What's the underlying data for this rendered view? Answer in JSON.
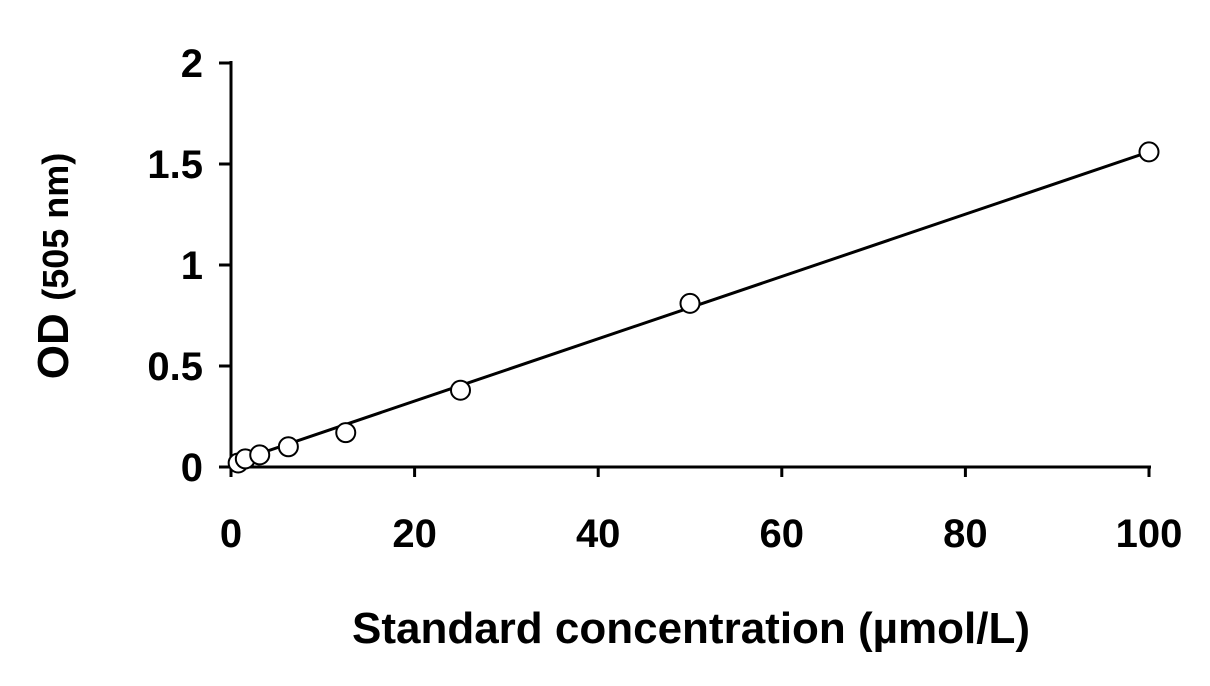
{
  "chart_data": {
    "type": "scatter",
    "title": "",
    "xlabel": "Standard concentration (µmol/L)",
    "ylabel": {
      "main": "OD",
      "unit": "(505 nm)"
    },
    "xlim": [
      0,
      100
    ],
    "ylim": [
      0,
      2
    ],
    "x_ticks": [
      0,
      20,
      40,
      60,
      80,
      100
    ],
    "x_tick_labels": [
      "0",
      "20",
      "40",
      "60",
      "80",
      "100"
    ],
    "y_ticks": [
      0,
      0.5,
      1,
      1.5,
      2
    ],
    "y_tick_labels": [
      "0",
      "0.5",
      "1",
      "1.5",
      "2"
    ],
    "grid": false,
    "legend": "none",
    "series": [
      {
        "marker": "open-circle",
        "x": [
          0.78,
          1.56,
          3.13,
          6.25,
          12.5,
          25,
          50,
          100
        ],
        "y": [
          0.02,
          0.04,
          0.06,
          0.1,
          0.17,
          0.38,
          0.81,
          1.56
        ]
      }
    ],
    "trendline": {
      "type": "linear",
      "x": [
        0.78,
        100
      ],
      "y": [
        0.03,
        1.56
      ]
    },
    "colors": {
      "axis": "#000000",
      "marker_stroke": "#000000",
      "marker_fill": "#ffffff",
      "line": "#000000"
    }
  }
}
